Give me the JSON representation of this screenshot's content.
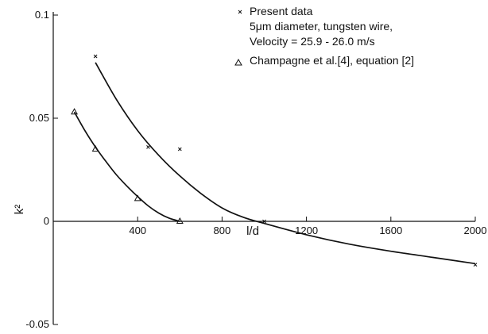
{
  "chart_data": {
    "type": "line",
    "xlabel": "l/d",
    "ylabel": "k²",
    "xlim": [
      0,
      2000
    ],
    "ylim": [
      -0.05,
      0.1
    ],
    "x_ticks": [
      400,
      800,
      1200,
      1600,
      2000
    ],
    "x_tick_labels": [
      "400",
      "800",
      "1200",
      "1600",
      "2000"
    ],
    "y_ticks": [
      0.1,
      0.05,
      0,
      -0.05
    ],
    "y_tick_labels": [
      "0.1",
      "0.05",
      "0",
      "-0.05"
    ],
    "grid": false,
    "legend_position": "top-right",
    "legend": [
      {
        "marker": "x",
        "lines": [
          "Present data",
          "5μm diameter, tungsten wire,",
          "Velocity = 25.9 - 26.0 m/s"
        ]
      },
      {
        "marker": "triangle",
        "lines": [
          "Champagne et al.[4], equation [2]"
        ]
      }
    ],
    "series": [
      {
        "marker": "x",
        "points": [
          {
            "x": 200,
            "y": 0.08
          },
          {
            "x": 450,
            "y": 0.036
          },
          {
            "x": 600,
            "y": 0.035
          },
          {
            "x": 1000,
            "y": 0.0
          },
          {
            "x": 2000,
            "y": -0.021
          }
        ],
        "curve": [
          {
            "x": 200,
            "y": 0.077
          },
          {
            "x": 300,
            "y": 0.059
          },
          {
            "x": 400,
            "y": 0.044
          },
          {
            "x": 500,
            "y": 0.032
          },
          {
            "x": 600,
            "y": 0.022
          },
          {
            "x": 700,
            "y": 0.0135
          },
          {
            "x": 800,
            "y": 0.0065
          },
          {
            "x": 900,
            "y": 0.002
          },
          {
            "x": 1000,
            "y": -0.001
          },
          {
            "x": 1200,
            "y": -0.0065
          },
          {
            "x": 1400,
            "y": -0.011
          },
          {
            "x": 1600,
            "y": -0.0145
          },
          {
            "x": 1800,
            "y": -0.0175
          },
          {
            "x": 2000,
            "y": -0.0205
          }
        ]
      },
      {
        "marker": "triangle",
        "points": [
          {
            "x": 100,
            "y": 0.053
          },
          {
            "x": 200,
            "y": 0.035
          },
          {
            "x": 400,
            "y": 0.011
          },
          {
            "x": 600,
            "y": 0.0
          }
        ],
        "curve": [
          {
            "x": 100,
            "y": 0.053
          },
          {
            "x": 150,
            "y": 0.044
          },
          {
            "x": 200,
            "y": 0.036
          },
          {
            "x": 250,
            "y": 0.029
          },
          {
            "x": 300,
            "y": 0.0225
          },
          {
            "x": 350,
            "y": 0.017
          },
          {
            "x": 400,
            "y": 0.012
          },
          {
            "x": 450,
            "y": 0.0075
          },
          {
            "x": 500,
            "y": 0.004
          },
          {
            "x": 550,
            "y": 0.0015
          },
          {
            "x": 600,
            "y": 0.0
          }
        ]
      }
    ]
  }
}
